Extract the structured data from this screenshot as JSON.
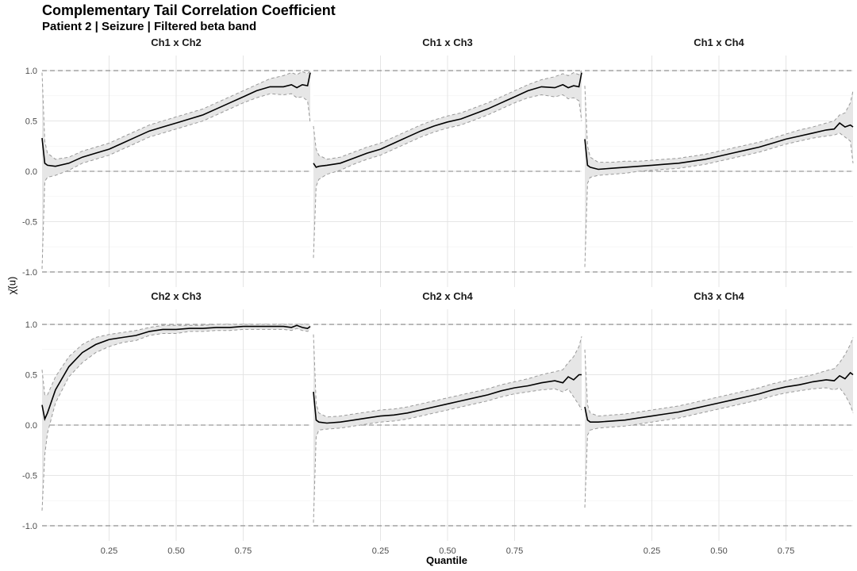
{
  "title": "Complementary Tail Correlation Coefficient",
  "subtitle": "Patient 2 | Seizure | Filtered beta band",
  "chart_data": {
    "type": "line",
    "xlabel": "Quantile",
    "ylabel": "χ̄(u)",
    "xlim": [
      0.0,
      1.0
    ],
    "ylim": [
      -1.15,
      1.15
    ],
    "x_ticks": [
      0.25,
      0.5,
      0.75
    ],
    "x_tick_labels": [
      "0.25",
      "0.50",
      "0.75"
    ],
    "y_ticks": [
      1.0,
      0.5,
      0.0,
      -0.5,
      -1.0
    ],
    "y_tick_labels": [
      "1.0",
      "0.5",
      "0.0",
      "-0.5",
      "-1.0"
    ],
    "reference_lines": [
      1.0,
      0.0,
      -1.0
    ],
    "grid": true,
    "panels": [
      {
        "name": "Ch1 x Ch2",
        "x": [
          0.0,
          0.01,
          0.02,
          0.05,
          0.1,
          0.15,
          0.2,
          0.25,
          0.3,
          0.35,
          0.4,
          0.45,
          0.5,
          0.55,
          0.6,
          0.65,
          0.7,
          0.75,
          0.8,
          0.85,
          0.9,
          0.93,
          0.95,
          0.97,
          0.99,
          1.0
        ],
        "estimate": [
          0.33,
          0.08,
          0.06,
          0.05,
          0.08,
          0.14,
          0.18,
          0.22,
          0.28,
          0.34,
          0.4,
          0.44,
          0.48,
          0.52,
          0.56,
          0.62,
          0.68,
          0.74,
          0.8,
          0.84,
          0.84,
          0.86,
          0.83,
          0.86,
          0.85,
          0.98
        ],
        "upper": [
          0.98,
          0.3,
          0.18,
          0.12,
          0.14,
          0.2,
          0.24,
          0.28,
          0.34,
          0.4,
          0.46,
          0.5,
          0.54,
          0.58,
          0.62,
          0.68,
          0.74,
          0.8,
          0.86,
          0.92,
          0.95,
          0.98,
          0.96,
          0.99,
          0.97,
          1.0
        ],
        "lower": [
          -0.97,
          -0.1,
          -0.06,
          -0.04,
          0.01,
          0.08,
          0.12,
          0.16,
          0.22,
          0.28,
          0.34,
          0.38,
          0.42,
          0.46,
          0.5,
          0.56,
          0.62,
          0.68,
          0.73,
          0.77,
          0.76,
          0.77,
          0.73,
          0.74,
          0.7,
          0.48
        ]
      },
      {
        "name": "Ch1 x Ch3",
        "x": [
          0.0,
          0.01,
          0.02,
          0.05,
          0.1,
          0.15,
          0.2,
          0.25,
          0.3,
          0.35,
          0.4,
          0.45,
          0.5,
          0.55,
          0.6,
          0.65,
          0.7,
          0.75,
          0.8,
          0.85,
          0.9,
          0.93,
          0.95,
          0.97,
          0.99,
          1.0
        ],
        "estimate": [
          0.08,
          0.04,
          0.05,
          0.06,
          0.08,
          0.13,
          0.18,
          0.22,
          0.28,
          0.34,
          0.4,
          0.45,
          0.49,
          0.52,
          0.57,
          0.62,
          0.68,
          0.74,
          0.8,
          0.84,
          0.83,
          0.86,
          0.83,
          0.85,
          0.84,
          0.98
        ],
        "upper": [
          0.45,
          0.22,
          0.16,
          0.12,
          0.14,
          0.19,
          0.24,
          0.28,
          0.34,
          0.4,
          0.46,
          0.51,
          0.55,
          0.58,
          0.63,
          0.68,
          0.74,
          0.8,
          0.86,
          0.91,
          0.94,
          0.97,
          0.95,
          0.98,
          0.96,
          1.0
        ],
        "lower": [
          -0.86,
          -0.15,
          -0.08,
          -0.03,
          0.01,
          0.07,
          0.12,
          0.16,
          0.22,
          0.28,
          0.34,
          0.39,
          0.43,
          0.46,
          0.51,
          0.56,
          0.62,
          0.68,
          0.73,
          0.76,
          0.74,
          0.76,
          0.72,
          0.73,
          0.7,
          0.5
        ]
      },
      {
        "name": "Ch1 x Ch4",
        "x": [
          0.0,
          0.01,
          0.02,
          0.05,
          0.1,
          0.15,
          0.2,
          0.25,
          0.3,
          0.35,
          0.4,
          0.45,
          0.5,
          0.55,
          0.6,
          0.65,
          0.7,
          0.75,
          0.8,
          0.85,
          0.9,
          0.93,
          0.95,
          0.97,
          0.99,
          1.0
        ],
        "estimate": [
          0.32,
          0.06,
          0.04,
          0.02,
          0.03,
          0.04,
          0.05,
          0.06,
          0.07,
          0.08,
          0.1,
          0.12,
          0.15,
          0.18,
          0.21,
          0.24,
          0.28,
          0.32,
          0.35,
          0.38,
          0.41,
          0.42,
          0.48,
          0.44,
          0.46,
          0.44
        ],
        "upper": [
          0.85,
          0.25,
          0.14,
          0.09,
          0.09,
          0.1,
          0.1,
          0.11,
          0.12,
          0.13,
          0.15,
          0.17,
          0.2,
          0.23,
          0.26,
          0.29,
          0.33,
          0.37,
          0.41,
          0.44,
          0.48,
          0.5,
          0.56,
          0.58,
          0.68,
          0.8
        ],
        "lower": [
          -0.95,
          -0.12,
          -0.06,
          -0.04,
          -0.03,
          -0.02,
          0.0,
          0.01,
          0.02,
          0.03,
          0.05,
          0.07,
          0.1,
          0.13,
          0.16,
          0.19,
          0.23,
          0.27,
          0.3,
          0.33,
          0.35,
          0.36,
          0.38,
          0.34,
          0.3,
          0.08
        ]
      },
      {
        "name": "Ch2 x Ch3",
        "x": [
          0.0,
          0.01,
          0.02,
          0.05,
          0.1,
          0.15,
          0.2,
          0.25,
          0.3,
          0.35,
          0.4,
          0.45,
          0.5,
          0.55,
          0.6,
          0.65,
          0.7,
          0.75,
          0.8,
          0.85,
          0.9,
          0.93,
          0.95,
          0.97,
          0.99,
          1.0
        ],
        "estimate": [
          0.2,
          0.06,
          0.12,
          0.35,
          0.58,
          0.72,
          0.8,
          0.85,
          0.87,
          0.89,
          0.93,
          0.95,
          0.95,
          0.96,
          0.96,
          0.97,
          0.97,
          0.98,
          0.98,
          0.98,
          0.98,
          0.97,
          0.99,
          0.97,
          0.96,
          0.98
        ],
        "upper": [
          0.55,
          0.3,
          0.3,
          0.48,
          0.68,
          0.8,
          0.87,
          0.9,
          0.92,
          0.94,
          0.97,
          0.99,
          0.99,
          0.99,
          0.99,
          1.0,
          1.0,
          1.0,
          1.0,
          1.0,
          1.0,
          1.0,
          1.0,
          1.0,
          1.0,
          1.0
        ],
        "lower": [
          -0.85,
          -0.3,
          -0.08,
          0.22,
          0.48,
          0.62,
          0.72,
          0.78,
          0.82,
          0.84,
          0.89,
          0.91,
          0.91,
          0.93,
          0.93,
          0.94,
          0.94,
          0.95,
          0.95,
          0.95,
          0.95,
          0.94,
          0.96,
          0.94,
          0.93,
          0.95
        ]
      },
      {
        "name": "Ch2 x Ch4",
        "x": [
          0.0,
          0.01,
          0.02,
          0.05,
          0.1,
          0.15,
          0.2,
          0.25,
          0.3,
          0.35,
          0.4,
          0.45,
          0.5,
          0.55,
          0.6,
          0.65,
          0.7,
          0.75,
          0.8,
          0.85,
          0.9,
          0.93,
          0.95,
          0.97,
          0.99,
          1.0
        ],
        "estimate": [
          0.33,
          0.05,
          0.03,
          0.02,
          0.03,
          0.05,
          0.07,
          0.09,
          0.1,
          0.12,
          0.15,
          0.18,
          0.21,
          0.24,
          0.27,
          0.3,
          0.34,
          0.37,
          0.39,
          0.42,
          0.44,
          0.42,
          0.48,
          0.45,
          0.5,
          0.5
        ],
        "upper": [
          0.9,
          0.22,
          0.12,
          0.08,
          0.09,
          0.11,
          0.13,
          0.15,
          0.16,
          0.18,
          0.21,
          0.24,
          0.27,
          0.3,
          0.33,
          0.36,
          0.4,
          0.43,
          0.46,
          0.5,
          0.53,
          0.55,
          0.62,
          0.68,
          0.78,
          0.88
        ],
        "lower": [
          -0.97,
          -0.12,
          -0.05,
          -0.04,
          -0.03,
          -0.01,
          0.01,
          0.03,
          0.04,
          0.06,
          0.09,
          0.12,
          0.15,
          0.18,
          0.21,
          0.24,
          0.28,
          0.31,
          0.33,
          0.35,
          0.36,
          0.33,
          0.36,
          0.28,
          0.2,
          0.15
        ]
      },
      {
        "name": "Ch3 x Ch4",
        "x": [
          0.0,
          0.01,
          0.02,
          0.05,
          0.1,
          0.15,
          0.2,
          0.25,
          0.3,
          0.35,
          0.4,
          0.45,
          0.5,
          0.55,
          0.6,
          0.65,
          0.7,
          0.75,
          0.8,
          0.85,
          0.9,
          0.93,
          0.95,
          0.97,
          0.99,
          1.0
        ],
        "estimate": [
          0.18,
          0.05,
          0.03,
          0.03,
          0.04,
          0.05,
          0.07,
          0.09,
          0.11,
          0.13,
          0.16,
          0.19,
          0.22,
          0.25,
          0.28,
          0.31,
          0.35,
          0.38,
          0.4,
          0.43,
          0.45,
          0.44,
          0.49,
          0.46,
          0.52,
          0.5
        ],
        "upper": [
          0.75,
          0.2,
          0.12,
          0.09,
          0.1,
          0.11,
          0.13,
          0.15,
          0.17,
          0.19,
          0.22,
          0.25,
          0.28,
          0.31,
          0.34,
          0.37,
          0.41,
          0.44,
          0.47,
          0.5,
          0.54,
          0.56,
          0.62,
          0.7,
          0.8,
          0.87
        ],
        "lower": [
          -0.82,
          -0.1,
          -0.05,
          -0.03,
          -0.02,
          -0.01,
          0.01,
          0.03,
          0.05,
          0.07,
          0.1,
          0.13,
          0.16,
          0.19,
          0.22,
          0.25,
          0.29,
          0.32,
          0.34,
          0.36,
          0.37,
          0.35,
          0.37,
          0.3,
          0.2,
          0.12
        ]
      }
    ]
  }
}
